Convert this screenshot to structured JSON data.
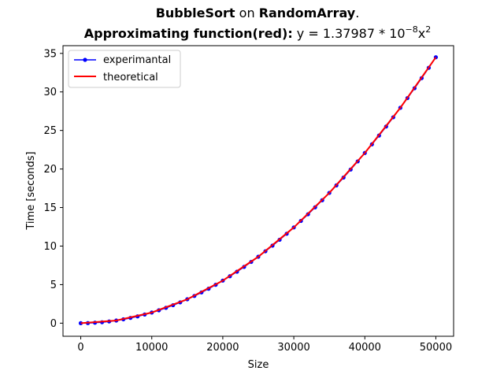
{
  "chart_data": {
    "type": "line",
    "title": {
      "line1": {
        "algorithm": "BubbleSort",
        "connector": " on ",
        "input": "RandomArray",
        "end": "."
      },
      "line2": {
        "label": "Approximating function(red)",
        "colon": ":",
        "formula_prefix": " y = 1.37987 * 10",
        "exponent": "−8",
        "variable": "x",
        "power": "2"
      }
    },
    "xlabel": "Size",
    "ylabel": "Time [seconds]",
    "xlim": [
      -2500,
      52500
    ],
    "ylim": [
      -1.7,
      36.0
    ],
    "x_ticks": [
      0,
      10000,
      20000,
      30000,
      40000,
      50000
    ],
    "y_ticks": [
      0,
      5,
      10,
      15,
      20,
      25,
      30,
      35
    ],
    "legend_position": "top-left",
    "series": [
      {
        "name": "experimantal",
        "color": "#0000ff",
        "marker": "dot",
        "x": [
          0,
          1000,
          2000,
          3000,
          4000,
          5000,
          6000,
          7000,
          8000,
          9000,
          10000,
          11000,
          12000,
          13000,
          14000,
          15000,
          16000,
          17000,
          18000,
          19000,
          20000,
          21000,
          22000,
          23000,
          24000,
          25000,
          26000,
          27000,
          28000,
          29000,
          30000,
          31000,
          32000,
          33000,
          34000,
          35000,
          36000,
          37000,
          38000,
          39000,
          40000,
          41000,
          42000,
          43000,
          44000,
          45000,
          46000,
          47000,
          48000,
          49000,
          50000
        ],
        "y": [
          0.0,
          0.01,
          0.06,
          0.12,
          0.22,
          0.34,
          0.5,
          0.68,
          0.88,
          1.12,
          1.38,
          1.67,
          1.99,
          2.33,
          2.7,
          3.1,
          3.53,
          3.99,
          4.47,
          4.98,
          5.52,
          6.09,
          6.68,
          7.3,
          7.95,
          8.62,
          9.33,
          10.06,
          10.82,
          11.6,
          12.42,
          13.26,
          14.13,
          15.03,
          15.95,
          16.9,
          17.88,
          18.89,
          19.93,
          20.99,
          22.08,
          23.2,
          24.34,
          25.51,
          26.71,
          27.94,
          29.2,
          30.48,
          31.79,
          33.13,
          34.5
        ]
      },
      {
        "name": "theoretical",
        "color": "#ff0000",
        "x": [
          0,
          5000,
          10000,
          15000,
          20000,
          25000,
          30000,
          35000,
          40000,
          45000,
          50000
        ],
        "y": [
          0.0,
          0.34,
          1.38,
          3.1,
          5.52,
          8.62,
          12.42,
          16.9,
          22.08,
          27.94,
          34.5
        ]
      }
    ]
  }
}
